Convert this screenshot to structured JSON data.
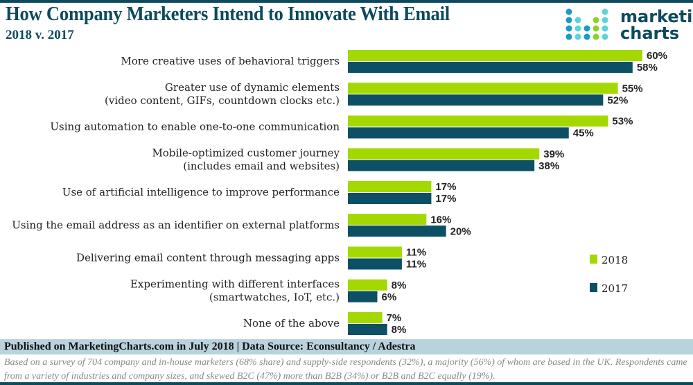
{
  "header": {
    "title": "How Company Marketers Intend to Innovate With Email",
    "subtitle": "2018 v. 2017",
    "logo_line1": "marketing",
    "logo_line2": "charts"
  },
  "colors": {
    "2018": "#a3d900",
    "2017": "#0d5066",
    "brand": "#0d4a5e"
  },
  "chart_data": {
    "type": "bar",
    "orientation": "horizontal",
    "xlim": [
      0,
      60
    ],
    "grid": false,
    "legend_placement": "bottom-right",
    "categories": [
      [
        "More creative uses of behavioral triggers"
      ],
      [
        "Greater use of dynamic elements",
        "(video content, GIFs, countdown clocks etc.)"
      ],
      [
        "Using automation to enable one-to-one communication"
      ],
      [
        "Mobile-optimized customer journey",
        "(includes email and websites)"
      ],
      [
        "Use of artificial intelligence to improve performance"
      ],
      [
        "Using the email address as an identifier on external platforms"
      ],
      [
        "Delivering email content through messaging apps"
      ],
      [
        "Experimenting with different interfaces",
        "(smartwatches, IoT, etc.)"
      ],
      [
        "None of the above"
      ]
    ],
    "series": [
      {
        "name": "2018",
        "values": [
          60,
          55,
          53,
          39,
          17,
          16,
          11,
          8,
          7
        ]
      },
      {
        "name": "2017",
        "values": [
          58,
          52,
          45,
          38,
          17,
          20,
          11,
          6,
          8
        ]
      }
    ],
    "value_suffix": "%"
  },
  "footer": {
    "published": "Published on MarketingCharts.com in July 2018 | Data Source: Econsultancy / Adestra",
    "note": "Based on a survey of 704 company and in-house marketers (68% share) and supply-side respondents (32%), a majority (56%) of whom are based in the UK. Respondents came from a variety of industries and company sizes, and skewed B2C (47%) more than B2B (34%) or B2B and B2C equally (19%)."
  }
}
